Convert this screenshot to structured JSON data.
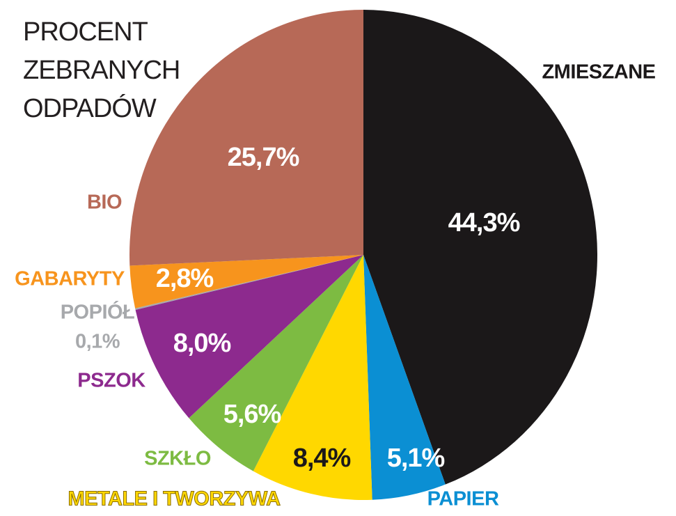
{
  "chart_data": {
    "type": "pie",
    "title": [
      "PROCENT",
      "ZEBRANYCH",
      "ODPADÓW"
    ],
    "categories": [
      "ZMIESZANE",
      "PAPIER",
      "METALE I TWORZYWA",
      "SZKŁO",
      "PSZOK",
      "POPIÓŁ",
      "GABARYTY",
      "BIO"
    ],
    "values": [
      44.3,
      5.1,
      8.4,
      5.6,
      8.0,
      0.1,
      2.8,
      25.7
    ],
    "value_labels": [
      "44,3%",
      "5,1%",
      "8,4%",
      "5,6%",
      "8,0%",
      "0,1%",
      "2,8%",
      "25,7%"
    ],
    "colors": [
      "#1b1819",
      "#0b8fd3",
      "#ffd800",
      "#7dbb42",
      "#8d2a8e",
      "#a7a9ac",
      "#f7941d",
      "#b76957"
    ]
  }
}
